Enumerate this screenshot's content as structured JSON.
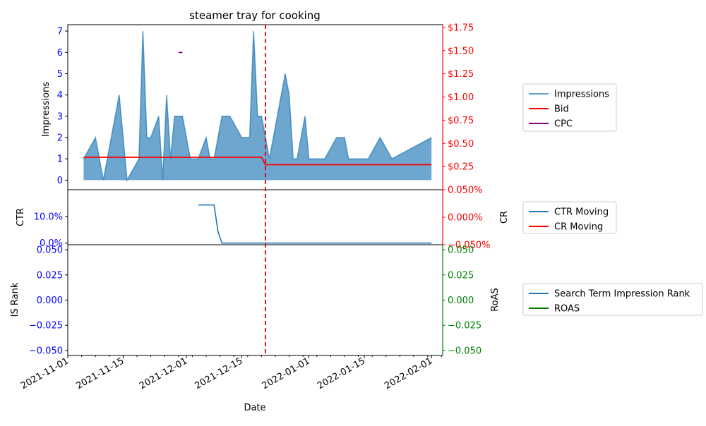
{
  "title": "steamer tray for cooking",
  "xlabel": "Date",
  "x_ticks": [
    "2021-11-01",
    "2021-11-15",
    "2021-12-01",
    "2021-12-15",
    "2022-01-01",
    "2022-01-15",
    "2022-02-01"
  ],
  "event_date": "2021-12-21",
  "colors": {
    "impressions": "#1f77b4",
    "bid": "#ff0000",
    "cpc": "#800080",
    "ctr": "#1f77b4",
    "cr": "#ff0000",
    "is_rank": "#1f77b4",
    "roas": "#008000",
    "left_ticks": "#0000ff",
    "right_ticks_top": "#ff0000",
    "right_ticks_bottom": "#008000"
  },
  "panels": {
    "top": {
      "ylabel_left": "Impressions",
      "left_ticks": [
        "0",
        "1",
        "2",
        "3",
        "4",
        "5",
        "6",
        "7"
      ],
      "right_ticks": [
        "$0.25",
        "$0.50",
        "$0.75",
        "$1.00",
        "$1.25",
        "$1.50",
        "$1.75"
      ],
      "legend": [
        "Impressions",
        "Bid",
        "CPC"
      ]
    },
    "middle": {
      "ylabel_left": "CTR",
      "ylabel_right": "CR",
      "left_ticks": [
        "0.0%",
        "10.0%"
      ],
      "right_ticks": [
        "−0.050%",
        "0.000%",
        "0.050%"
      ],
      "legend": [
        "CTR Moving",
        "CR Moving"
      ]
    },
    "bottom": {
      "ylabel_left": "IS Rank",
      "ylabel_right": "RoAS",
      "left_ticks": [
        "−0.050",
        "−0.025",
        "0.000",
        "0.025",
        "0.050"
      ],
      "right_ticks": [
        "−0.050",
        "−0.025",
        "0.000",
        "0.025",
        "0.050"
      ],
      "legend": [
        "Search Term Impression Rank",
        "ROAS"
      ]
    }
  },
  "chart_data": [
    {
      "type": "area",
      "series": [
        {
          "name": "Impressions",
          "x": [
            "2021-11-05",
            "2021-11-08",
            "2021-11-10",
            "2021-11-14",
            "2021-11-16",
            "2021-11-19",
            "2021-11-20",
            "2021-11-21",
            "2021-11-22",
            "2021-11-24",
            "2021-11-25",
            "2021-11-26",
            "2021-11-27",
            "2021-11-28",
            "2021-11-30",
            "2021-12-02",
            "2021-12-04",
            "2021-12-06",
            "2021-12-07",
            "2021-12-08",
            "2021-12-10",
            "2021-12-12",
            "2021-12-15",
            "2021-12-17",
            "2021-12-18",
            "2021-12-19",
            "2021-12-20",
            "2021-12-22",
            "2021-12-24",
            "2021-12-26",
            "2021-12-27",
            "2021-12-28",
            "2021-12-29",
            "2021-12-31",
            "2022-01-01",
            "2022-01-05",
            "2022-01-08",
            "2022-01-10",
            "2022-01-11",
            "2022-01-16",
            "2022-01-19",
            "2022-01-22",
            "2022-02-01"
          ],
          "values": [
            1,
            2,
            0,
            4,
            0,
            1,
            7,
            2,
            2,
            3,
            0,
            4,
            1,
            3,
            3,
            1,
            1,
            2,
            1,
            1,
            3,
            3,
            2,
            2,
            7,
            3,
            3,
            1,
            3,
            5,
            4,
            1,
            1,
            3,
            1,
            1,
            2,
            2,
            1,
            1,
            2,
            1,
            2
          ]
        },
        {
          "name": "Bid",
          "x": [
            "2021-11-05",
            "2021-12-20",
            "2021-12-21",
            "2022-02-01"
          ],
          "values": [
            0.35,
            0.35,
            0.27,
            0.27
          ]
        },
        {
          "name": "CPC",
          "x": [
            "2021-11-29",
            "2021-11-30"
          ],
          "values": [
            1.48,
            1.48
          ]
        }
      ],
      "ylim": [
        -0.45,
        7.3
      ],
      "ylim_right": [
        0,
        1.78
      ]
    },
    {
      "type": "line",
      "series": [
        {
          "name": "CTR Moving",
          "x": [
            "2021-12-04",
            "2021-12-08",
            "2021-12-09",
            "2021-12-10",
            "2022-02-01"
          ],
          "values": [
            0.143,
            0.143,
            0.043,
            0.0,
            0.0
          ]
        },
        {
          "name": "CR Moving",
          "x": [],
          "values": []
        }
      ],
      "ylim": [
        -0.006,
        0.2
      ],
      "ylim_right": [
        -0.05,
        0.05
      ]
    },
    {
      "type": "line",
      "series": [
        {
          "name": "Search Term Impression Rank",
          "x": [],
          "values": []
        },
        {
          "name": "ROAS",
          "x": [],
          "values": []
        }
      ],
      "ylim": [
        -0.055,
        0.055
      ],
      "ylim_right": [
        -0.055,
        0.055
      ]
    }
  ]
}
